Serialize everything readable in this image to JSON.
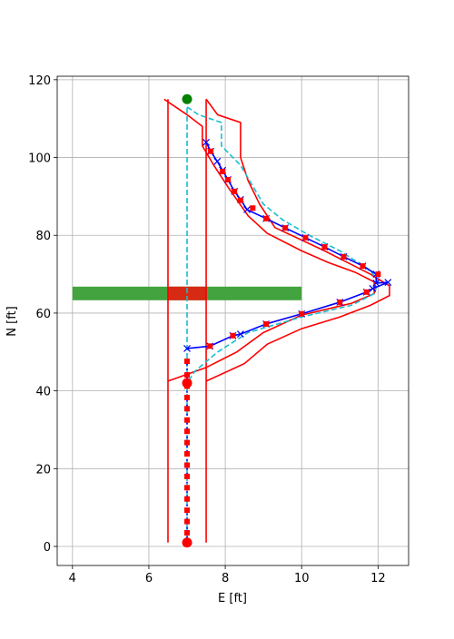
{
  "chart_data": {
    "type": "line",
    "xlabel": "E [ft]",
    "ylabel": "N [ft]",
    "xlim": [
      3.6,
      12.8
    ],
    "ylim": [
      -4.9,
      120.9
    ],
    "xticks": [
      4,
      6,
      8,
      10,
      12
    ],
    "yticks": [
      0,
      20,
      40,
      60,
      80,
      100,
      120
    ],
    "grid": true,
    "regions": [
      {
        "x": [
          4,
          10
        ],
        "y": [
          63.3,
          66.8
        ],
        "color": "#43a33f"
      },
      {
        "x": [
          6.5,
          7.5
        ],
        "y": [
          63.3,
          66.8
        ],
        "color": "#d62a15"
      }
    ],
    "series": [
      {
        "x": [
          6.5,
          6.5
        ],
        "y": [
          1,
          115
        ],
        "color": "#ff0000",
        "dash": "solid",
        "marker": null
      },
      {
        "x": [
          7.5,
          7.5
        ],
        "y": [
          1,
          115
        ],
        "color": "#ff0000",
        "dash": "solid",
        "marker": null
      },
      {
        "x": [
          6.5,
          7.5,
          8.3,
          9.0,
          10.0,
          11.3,
          11.9,
          11.9,
          11.4,
          10.7,
          10.0,
          9.1,
          8.6,
          8.1,
          7.7,
          7.4,
          7.4,
          7.0,
          6.4
        ],
        "y": [
          42.5,
          46,
          50,
          55,
          59.5,
          62.5,
          65,
          68,
          70.5,
          73,
          76,
          80.5,
          85,
          92,
          98,
          103,
          108,
          111,
          115
        ],
        "color": "#ff0000",
        "dash": "solid",
        "marker": null
      },
      {
        "x": [
          7.5,
          8.5,
          9.1,
          10.0,
          11.0,
          11.8,
          12.3,
          12.3,
          11.8,
          10.6,
          9.3,
          8.9,
          8.6,
          8.4,
          8.4,
          7.8,
          7.5
        ],
        "y": [
          42.5,
          47,
          52,
          56,
          59,
          62,
          64.5,
          67,
          70,
          76,
          82,
          88,
          94,
          100,
          109,
          111,
          115
        ],
        "color": "#ff0000",
        "dash": "solid",
        "marker": null
      },
      {
        "x": [
          7,
          7
        ],
        "y": [
          0,
          113
        ],
        "color": "#17becf",
        "dash": "dashed",
        "marker": null
      },
      {
        "x": [
          7.0,
          7.3,
          7.9,
          7.9,
          8.4,
          8.7,
          9.0,
          9.5,
          10.2,
          11.0,
          11.8,
          12.0,
          11.9,
          11.3,
          10.0,
          8.6,
          7.8,
          7.2,
          7.0
        ],
        "y": [
          113,
          111,
          109,
          103,
          98,
          93,
          88,
          84,
          80,
          76,
          71,
          68,
          65,
          62,
          59,
          55,
          50,
          45,
          42
        ],
        "color": "#17becf",
        "dash": "dashed",
        "marker": null
      },
      {
        "x": [
          7,
          7
        ],
        "y": [
          1,
          48
        ],
        "color": "#0000ff",
        "dash": "dotted",
        "marker": null
      },
      {
        "x": [
          7.0,
          7.6,
          8.2,
          8.4,
          9.07,
          10.0,
          11.0,
          11.7,
          11.86,
          12.26,
          11.95,
          11.95,
          11.6,
          11.1,
          10.6,
          10.1,
          9.57,
          9.07,
          8.57,
          8.4,
          8.24,
          8.07,
          7.93,
          7.79,
          7.62,
          7.5
        ],
        "y": [
          50.9,
          51.5,
          54.2,
          54.6,
          57.2,
          59.8,
          62.8,
          65.4,
          66.3,
          67.9,
          67.7,
          70,
          72.1,
          74.5,
          77,
          79.4,
          81.9,
          84.3,
          86.6,
          89.2,
          91.3,
          94.3,
          96.7,
          99,
          101.6,
          103.9
        ],
        "color": "#0000ff",
        "dash": "solid",
        "marker": "x"
      },
      {
        "x": [
          7,
          7,
          7,
          7,
          7,
          7,
          7,
          7,
          7,
          7,
          7,
          7,
          7,
          7,
          7,
          7,
          7.6,
          8.2,
          9.07,
          10.0,
          11.0,
          11.7,
          12.0,
          11.6,
          11.1,
          10.6,
          10.1,
          9.57,
          9.07,
          8.72,
          8.4,
          8.24,
          8.07,
          7.93,
          7.62
        ],
        "y": [
          3.5,
          6.4,
          9.3,
          12.2,
          15.1,
          18,
          20.9,
          23.8,
          26.7,
          29.6,
          32.5,
          35.4,
          38.3,
          41.2,
          44.1,
          47.6,
          51.5,
          54.2,
          57.2,
          59.8,
          62.8,
          65.4,
          70,
          72.1,
          74.5,
          77,
          79.4,
          81.9,
          84.3,
          87,
          89,
          91.3,
          94.3,
          96.4,
          101.6
        ],
        "color": "#ff0000",
        "dash": "none",
        "marker": "s"
      },
      {
        "x": [
          7,
          7
        ],
        "y": [
          1,
          42
        ],
        "color": "#ff0000",
        "dash": "none",
        "marker": "o"
      },
      {
        "x": [
          7
        ],
        "y": [
          115
        ],
        "color": "#008000",
        "dash": "none",
        "marker": "o"
      }
    ]
  }
}
